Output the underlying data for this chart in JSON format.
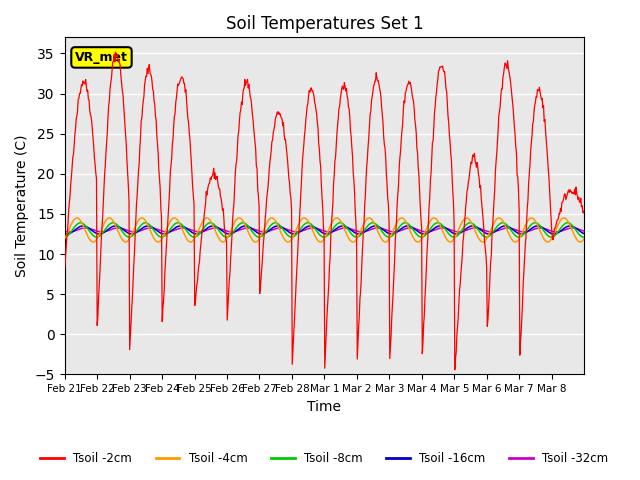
{
  "title": "Soil Temperatures Set 1",
  "xlabel": "Time",
  "ylabel": "Soil Temperature (C)",
  "ylim": [
    -5,
    37
  ],
  "yticks": [
    -5,
    0,
    5,
    10,
    15,
    20,
    25,
    30,
    35
  ],
  "xtick_labels": [
    "Feb 21",
    "Feb 22",
    "Feb 23",
    "Feb 24",
    "Feb 25",
    "Feb 26",
    "Feb 27",
    "Feb 28",
    "Mar 1",
    "Mar 2",
    "Mar 3",
    "Mar 4",
    "Mar 5",
    "Mar 6",
    "Mar 7",
    "Mar 8"
  ],
  "series_colors": [
    "#ff0000",
    "#ff9900",
    "#00cc00",
    "#0000cc",
    "#cc00cc"
  ],
  "series_labels": [
    "Tsoil -2cm",
    "Tsoil -4cm",
    "Tsoil -8cm",
    "Tsoil -16cm",
    "Tsoil -32cm"
  ],
  "annotation_text": "VR_met",
  "background_color": "#e8e8e8",
  "n_days": 16,
  "pts_per_day": 48,
  "base_temp": 13.0,
  "amplitude_4cm": 1.5,
  "amplitude_8cm": 0.9,
  "amplitude_16cm": 0.5,
  "amplitude_32cm": 0.25,
  "spike_highs": [
    31.5,
    35.0,
    33.0,
    32.0,
    20.0,
    31.5,
    27.5,
    30.5,
    31.0,
    32.0,
    31.5,
    33.5,
    22.0,
    33.5,
    30.5,
    18.0
  ],
  "spike_lows": [
    8.0,
    1.0,
    -2.0,
    1.5,
    3.5,
    2.0,
    5.0,
    -3.5,
    -4.0,
    -3.0,
    -3.0,
    -2.5,
    -4.5,
    0.5,
    -2.5,
    12.0
  ]
}
